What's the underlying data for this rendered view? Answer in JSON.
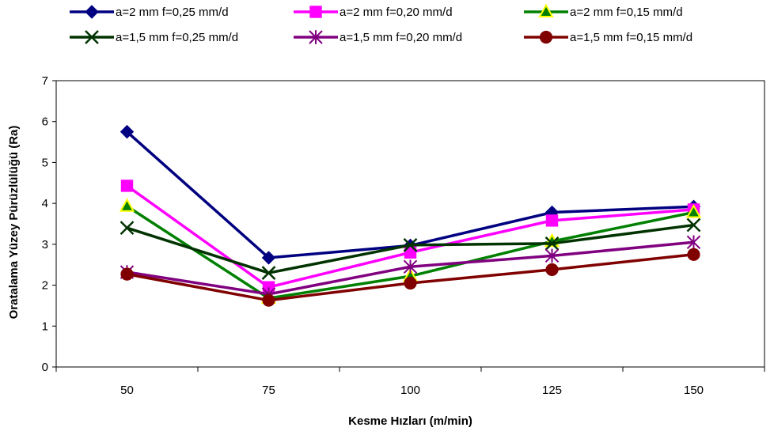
{
  "chart_data": {
    "type": "line",
    "title": "",
    "xlabel": "Kesme Hızları (m/min)",
    "ylabel": "Oratalama Yüzey Pürüzlülüğü (Ra)",
    "categories": [
      "50",
      "75",
      "100",
      "125",
      "150"
    ],
    "ylim": [
      0,
      7
    ],
    "yticks": [
      "0",
      "1",
      "2",
      "3",
      "4",
      "5",
      "6",
      "7"
    ],
    "grid": false,
    "legend_position": "top",
    "series": [
      {
        "name": "a=2 mm f=0,25 mm/d",
        "color": "#000080",
        "marker": "diamond",
        "values": [
          5.75,
          2.67,
          2.97,
          3.78,
          3.92
        ]
      },
      {
        "name": "a=2 mm f=0,20 mm/d",
        "color": "#FF00FF",
        "marker": "square",
        "values": [
          4.43,
          1.95,
          2.8,
          3.58,
          3.85
        ]
      },
      {
        "name": "a=2 mm f=0,15 mm/d",
        "color": "#008000",
        "marker": "triangle",
        "values": [
          3.93,
          1.68,
          2.22,
          3.07,
          3.78
        ]
      },
      {
        "name": "a=1,5 mm f=0,25 mm/d",
        "color": "#003300",
        "marker": "x",
        "values": [
          3.4,
          2.3,
          2.98,
          3.02,
          3.47
        ]
      },
      {
        "name": "a=1,5 mm f=0,20 mm/d",
        "color": "#800080",
        "marker": "star",
        "values": [
          2.32,
          1.78,
          2.45,
          2.72,
          3.05
        ]
      },
      {
        "name": "a=1,5 mm f=0,15 mm/d",
        "color": "#800000",
        "marker": "circle",
        "values": [
          2.27,
          1.63,
          2.05,
          2.38,
          2.75
        ]
      }
    ]
  }
}
